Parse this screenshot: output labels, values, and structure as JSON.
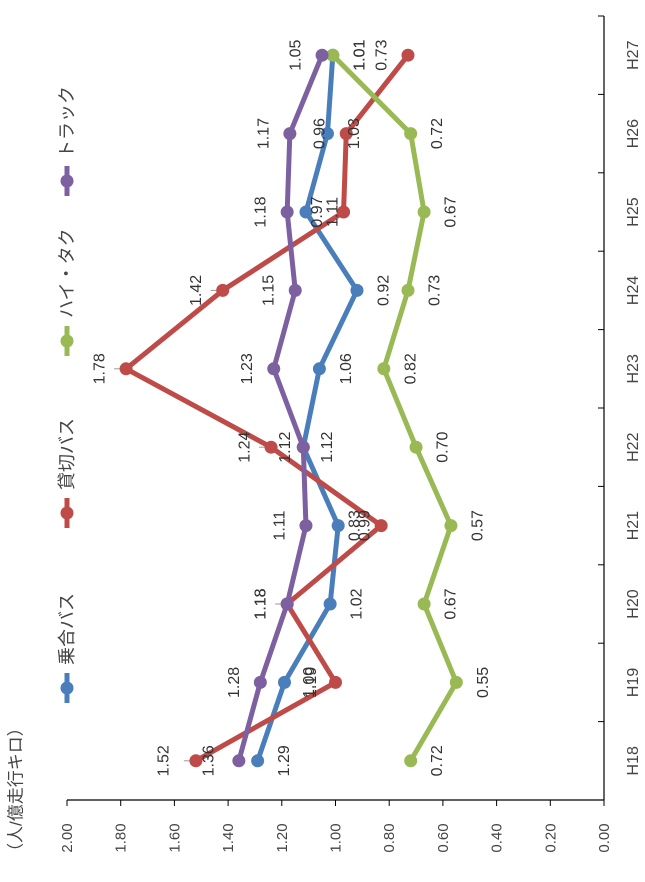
{
  "chart_data": {
    "type": "line",
    "orientation": "rotated-90-clockwise",
    "unit_label": "（人/億走行キロ）",
    "categories": [
      "H18",
      "H19",
      "H20",
      "H21",
      "H22",
      "H23",
      "H24",
      "H25",
      "H26",
      "H27"
    ],
    "y_ticks": [
      "0.00",
      "0.20",
      "0.40",
      "0.60",
      "0.80",
      "1.00",
      "1.20",
      "1.40",
      "1.60",
      "1.80",
      "2.00"
    ],
    "ylim": [
      0,
      2.0
    ],
    "grid": false,
    "legend_position": "top",
    "series": [
      {
        "name": "乗合バス",
        "color": "#4a7ebb",
        "values": [
          1.29,
          1.19,
          1.02,
          0.99,
          1.12,
          1.06,
          0.92,
          1.11,
          1.03,
          1.01
        ],
        "labels": [
          "1.29",
          "1.19",
          "1.02",
          "0.99",
          "1.12",
          "1.06",
          "0.92",
          "1.11",
          "1.03",
          "1.01"
        ]
      },
      {
        "name": "貸切バス",
        "color": "#be4b48",
        "values": [
          1.52,
          1.0,
          1.18,
          0.83,
          1.24,
          1.78,
          1.42,
          0.97,
          0.96,
          0.73
        ],
        "labels": [
          "1.52",
          "1.00",
          "1.18",
          "0.83",
          "1.24",
          "1.78",
          "1.42",
          "0.97",
          "0.96",
          "0.73"
        ]
      },
      {
        "name": "ハイ・タク",
        "color": "#98b954",
        "values": [
          0.72,
          0.55,
          0.67,
          0.57,
          0.7,
          0.82,
          0.73,
          0.67,
          0.72,
          1.01
        ],
        "labels": [
          "0.72",
          "0.55",
          "0.67",
          "0.57",
          "0.70",
          "0.82",
          "0.73",
          "0.67",
          "0.72",
          "1.01"
        ]
      },
      {
        "name": "トラック",
        "color": "#7d60a0",
        "values": [
          1.36,
          1.28,
          1.18,
          1.11,
          1.12,
          1.23,
          1.15,
          1.18,
          1.17,
          1.05
        ],
        "labels": [
          "1.36",
          "1.28",
          "1.18",
          "1.11",
          "1.12",
          "1.23",
          "1.15",
          "1.18",
          "1.17",
          "1.05"
        ]
      }
    ]
  }
}
